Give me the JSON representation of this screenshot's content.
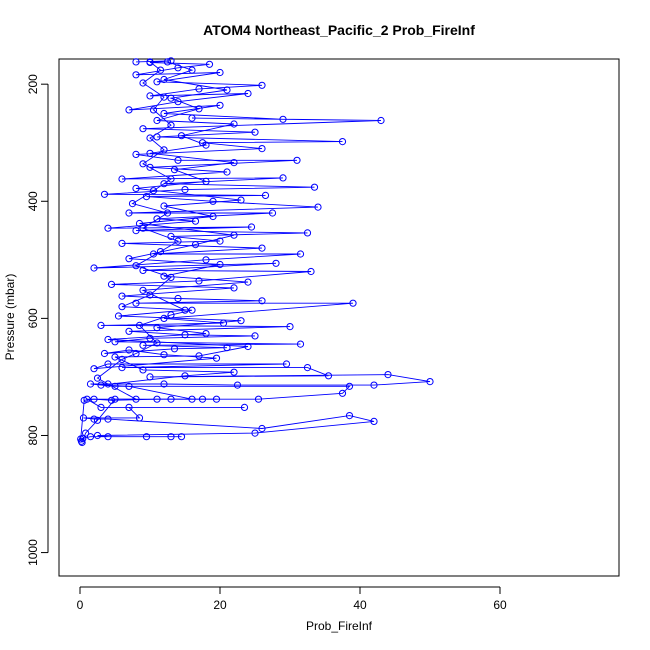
{
  "chart_data": {
    "type": "line",
    "title": "ATOM4 Northeast_Pacific_2 Prob_FireInf",
    "xlabel": "Prob_FireInf",
    "ylabel": "Pressure (mbar)",
    "xlim": [
      -3,
      77
    ],
    "ylim": [
      1040,
      157
    ],
    "y_axis_reversed": true,
    "x_ticks": [
      0,
      20,
      40,
      60
    ],
    "y_ticks": [
      200,
      400,
      600,
      800,
      1000
    ],
    "grid": false,
    "line_color": "#0000ff",
    "marker": "open-circle",
    "series": [
      {
        "points": [
          {
            "x": 0.2,
            "y": 810
          },
          {
            "x": 0.4,
            "y": 805
          },
          {
            "x": 1.5,
            "y": 802
          },
          {
            "x": 14.5,
            "y": 802
          },
          {
            "x": 13,
            "y": 802
          },
          {
            "x": 9.5,
            "y": 802
          },
          {
            "x": 4,
            "y": 802
          },
          {
            "x": 2.5,
            "y": 800
          },
          {
            "x": 25,
            "y": 796
          },
          {
            "x": 42,
            "y": 776
          },
          {
            "x": 38.5,
            "y": 766
          },
          {
            "x": 26,
            "y": 788
          },
          {
            "x": 4,
            "y": 772
          },
          {
            "x": 2,
            "y": 772
          },
          {
            "x": 0.5,
            "y": 770
          },
          {
            "x": 8.5,
            "y": 770
          },
          {
            "x": 7,
            "y": 752
          },
          {
            "x": 23.5,
            "y": 752
          },
          {
            "x": 3,
            "y": 752
          },
          {
            "x": 1,
            "y": 738
          },
          {
            "x": 17.5,
            "y": 738
          },
          {
            "x": 13,
            "y": 738
          },
          {
            "x": 25.5,
            "y": 738
          },
          {
            "x": 37.5,
            "y": 728
          },
          {
            "x": 38.5,
            "y": 716
          },
          {
            "x": 5,
            "y": 716
          },
          {
            "x": 1.5,
            "y": 712
          },
          {
            "x": 12,
            "y": 712
          },
          {
            "x": 22.5,
            "y": 714
          },
          {
            "x": 42,
            "y": 714
          },
          {
            "x": 50,
            "y": 708
          },
          {
            "x": 44,
            "y": 696
          },
          {
            "x": 10,
            "y": 700
          },
          {
            "x": 35.5,
            "y": 698
          },
          {
            "x": 32.5,
            "y": 684
          },
          {
            "x": 6,
            "y": 684
          },
          {
            "x": 29.5,
            "y": 678
          },
          {
            "x": 4,
            "y": 678
          },
          {
            "x": 2,
            "y": 686
          },
          {
            "x": 19.5,
            "y": 668
          },
          {
            "x": 12,
            "y": 662
          },
          {
            "x": 7,
            "y": 654
          },
          {
            "x": 3.5,
            "y": 660
          },
          {
            "x": 13.5,
            "y": 652
          },
          {
            "x": 21,
            "y": 650
          },
          {
            "x": 9,
            "y": 646
          },
          {
            "x": 31.5,
            "y": 644
          },
          {
            "x": 5,
            "y": 640
          },
          {
            "x": 10,
            "y": 634
          },
          {
            "x": 25,
            "y": 630
          },
          {
            "x": 15,
            "y": 628
          },
          {
            "x": 7,
            "y": 622
          },
          {
            "x": 30,
            "y": 614
          },
          {
            "x": 3,
            "y": 612
          },
          {
            "x": 20.5,
            "y": 608
          },
          {
            "x": 12,
            "y": 600
          },
          {
            "x": 39,
            "y": 574
          },
          {
            "x": 8,
            "y": 574
          },
          {
            "x": 26,
            "y": 570
          },
          {
            "x": 14,
            "y": 566
          },
          {
            "x": 6,
            "y": 562
          },
          {
            "x": 22,
            "y": 548
          },
          {
            "x": 4.5,
            "y": 542
          },
          {
            "x": 17,
            "y": 536
          },
          {
            "x": 33,
            "y": 520
          },
          {
            "x": 9,
            "y": 518
          },
          {
            "x": 28,
            "y": 506
          },
          {
            "x": 2,
            "y": 514
          },
          {
            "x": 18,
            "y": 500
          },
          {
            "x": 31.5,
            "y": 490
          },
          {
            "x": 10.5,
            "y": 490
          },
          {
            "x": 26,
            "y": 480
          },
          {
            "x": 6,
            "y": 472
          },
          {
            "x": 20,
            "y": 468
          },
          {
            "x": 13,
            "y": 460
          },
          {
            "x": 32.5,
            "y": 454
          },
          {
            "x": 8,
            "y": 450
          },
          {
            "x": 24.5,
            "y": 444
          },
          {
            "x": 4,
            "y": 446
          },
          {
            "x": 16.5,
            "y": 434
          },
          {
            "x": 11,
            "y": 430
          },
          {
            "x": 27.5,
            "y": 420
          },
          {
            "x": 7,
            "y": 420
          },
          {
            "x": 34,
            "y": 410
          },
          {
            "x": 19,
            "y": 400
          },
          {
            "x": 9.5,
            "y": 392
          },
          {
            "x": 26.5,
            "y": 390
          },
          {
            "x": 3.5,
            "y": 388
          },
          {
            "x": 15,
            "y": 380
          },
          {
            "x": 33.5,
            "y": 376
          },
          {
            "x": 12,
            "y": 370
          },
          {
            "x": 29,
            "y": 360
          },
          {
            "x": 6,
            "y": 362
          },
          {
            "x": 21,
            "y": 350
          },
          {
            "x": 10,
            "y": 342
          },
          {
            "x": 31,
            "y": 330
          },
          {
            "x": 14,
            "y": 330
          },
          {
            "x": 8,
            "y": 320
          },
          {
            "x": 26,
            "y": 310
          },
          {
            "x": 17.5,
            "y": 300
          },
          {
            "x": 37.5,
            "y": 298
          },
          {
            "x": 11,
            "y": 290
          },
          {
            "x": 25,
            "y": 282
          },
          {
            "x": 9,
            "y": 276
          },
          {
            "x": 43,
            "y": 262
          },
          {
            "x": 16,
            "y": 258
          },
          {
            "x": 29,
            "y": 260
          },
          {
            "x": 12,
            "y": 250
          },
          {
            "x": 20,
            "y": 236
          },
          {
            "x": 7,
            "y": 244
          },
          {
            "x": 14,
            "y": 230
          },
          {
            "x": 24,
            "y": 216
          },
          {
            "x": 10,
            "y": 220
          },
          {
            "x": 17,
            "y": 208
          },
          {
            "x": 26,
            "y": 202
          },
          {
            "x": 11,
            "y": 196
          },
          {
            "x": 20,
            "y": 180
          },
          {
            "x": 8,
            "y": 184
          },
          {
            "x": 14,
            "y": 172
          },
          {
            "x": 18.5,
            "y": 166
          },
          {
            "x": 10,
            "y": 163
          },
          {
            "x": 13,
            "y": 160
          },
          {
            "x": 8,
            "y": 162
          }
        ]
      },
      {
        "points": [
          {
            "x": 0.3,
            "y": 812
          },
          {
            "x": 0.8,
            "y": 796
          },
          {
            "x": 2.5,
            "y": 774
          },
          {
            "x": 5,
            "y": 738
          },
          {
            "x": 8,
            "y": 738
          },
          {
            "x": 4,
            "y": 712
          },
          {
            "x": 2.5,
            "y": 702
          },
          {
            "x": 6,
            "y": 670
          },
          {
            "x": 8,
            "y": 660
          },
          {
            "x": 11,
            "y": 642
          },
          {
            "x": 8.5,
            "y": 612
          },
          {
            "x": 13,
            "y": 594
          },
          {
            "x": 16,
            "y": 586
          },
          {
            "x": 6,
            "y": 580
          },
          {
            "x": 10,
            "y": 560
          },
          {
            "x": 13,
            "y": 530
          },
          {
            "x": 8,
            "y": 510
          },
          {
            "x": 11.5,
            "y": 486
          },
          {
            "x": 14,
            "y": 468
          },
          {
            "x": 9,
            "y": 446
          },
          {
            "x": 12.5,
            "y": 420
          },
          {
            "x": 7.5,
            "y": 404
          },
          {
            "x": 10.5,
            "y": 382
          },
          {
            "x": 13,
            "y": 362
          },
          {
            "x": 9,
            "y": 336
          },
          {
            "x": 12,
            "y": 312
          },
          {
            "x": 10,
            "y": 292
          },
          {
            "x": 13,
            "y": 270
          },
          {
            "x": 10.5,
            "y": 244
          },
          {
            "x": 12,
            "y": 222
          },
          {
            "x": 9,
            "y": 198
          },
          {
            "x": 11.5,
            "y": 176
          },
          {
            "x": 10,
            "y": 162
          }
        ]
      },
      {
        "points": [
          {
            "x": 0.1,
            "y": 806
          },
          {
            "x": 0.6,
            "y": 740
          },
          {
            "x": 2,
            "y": 738
          },
          {
            "x": 4.5,
            "y": 740
          },
          {
            "x": 11,
            "y": 738
          },
          {
            "x": 19.5,
            "y": 738
          },
          {
            "x": 16,
            "y": 738
          },
          {
            "x": 7,
            "y": 716
          },
          {
            "x": 3,
            "y": 714
          },
          {
            "x": 15,
            "y": 698
          },
          {
            "x": 22,
            "y": 692
          },
          {
            "x": 9,
            "y": 688
          },
          {
            "x": 5,
            "y": 666
          },
          {
            "x": 17,
            "y": 664
          },
          {
            "x": 24,
            "y": 648
          },
          {
            "x": 4,
            "y": 636
          },
          {
            "x": 18,
            "y": 626
          },
          {
            "x": 11,
            "y": 616
          },
          {
            "x": 23,
            "y": 604
          },
          {
            "x": 5.5,
            "y": 596
          },
          {
            "x": 15,
            "y": 586
          },
          {
            "x": 9,
            "y": 552
          },
          {
            "x": 24,
            "y": 538
          },
          {
            "x": 12,
            "y": 528
          },
          {
            "x": 20,
            "y": 508
          },
          {
            "x": 7,
            "y": 498
          },
          {
            "x": 16.5,
            "y": 474
          },
          {
            "x": 22,
            "y": 458
          },
          {
            "x": 8.5,
            "y": 438
          },
          {
            "x": 19,
            "y": 426
          },
          {
            "x": 12,
            "y": 408
          },
          {
            "x": 23,
            "y": 398
          },
          {
            "x": 8,
            "y": 378
          },
          {
            "x": 18,
            "y": 366
          },
          {
            "x": 13.5,
            "y": 346
          },
          {
            "x": 22,
            "y": 334
          },
          {
            "x": 10,
            "y": 318
          },
          {
            "x": 18,
            "y": 304
          },
          {
            "x": 14.5,
            "y": 288
          },
          {
            "x": 22,
            "y": 268
          },
          {
            "x": 11,
            "y": 262
          },
          {
            "x": 17,
            "y": 242
          },
          {
            "x": 13,
            "y": 224
          },
          {
            "x": 21,
            "y": 210
          },
          {
            "x": 12,
            "y": 192
          },
          {
            "x": 16,
            "y": 176
          },
          {
            "x": 12.5,
            "y": 162
          }
        ]
      }
    ]
  }
}
